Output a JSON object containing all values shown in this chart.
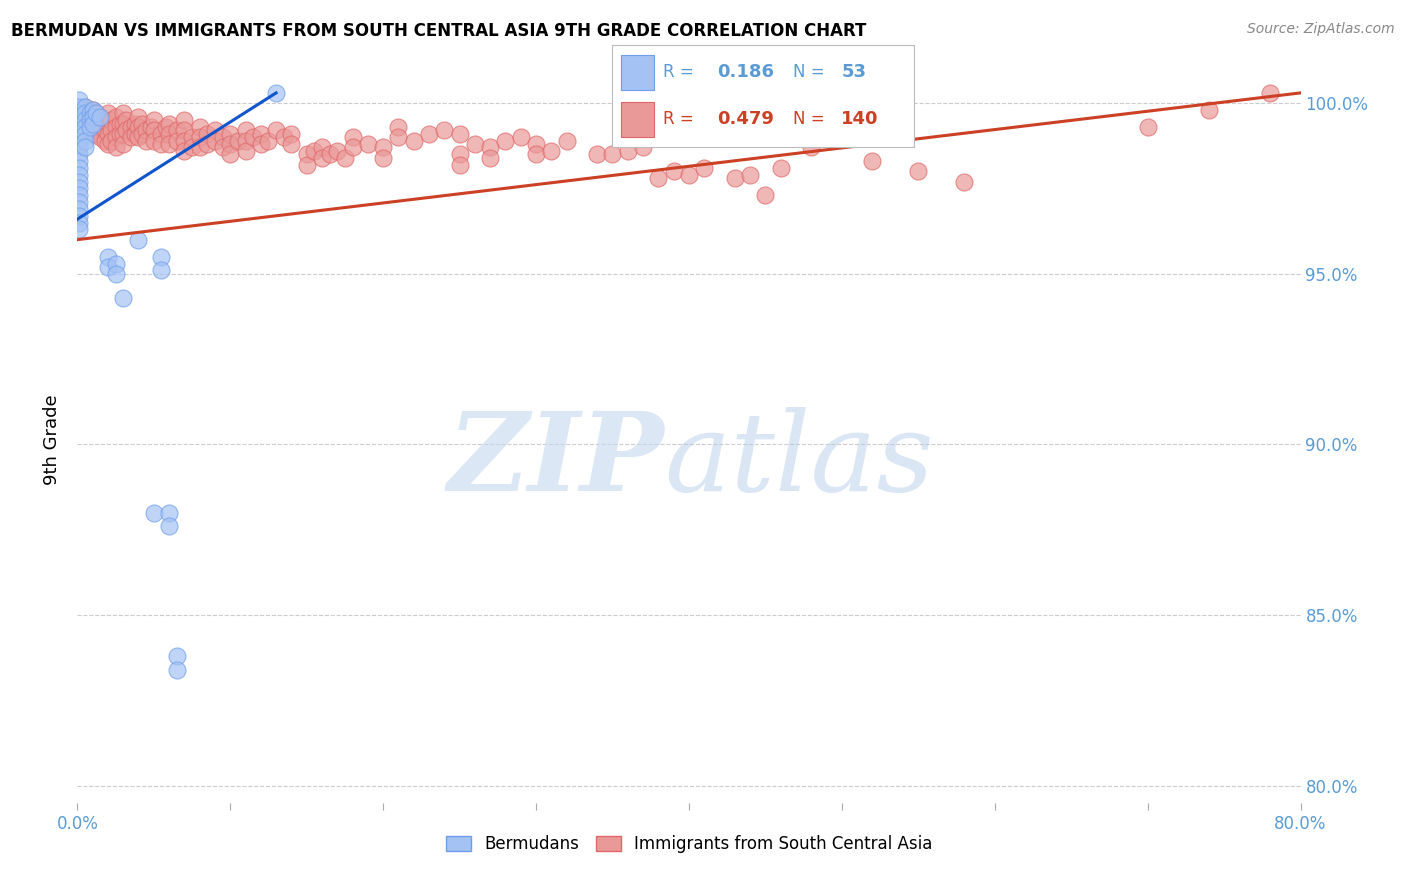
{
  "title": "BERMUDAN VS IMMIGRANTS FROM SOUTH CENTRAL ASIA 9TH GRADE CORRELATION CHART",
  "source": "Source: ZipAtlas.com",
  "ylabel": "9th Grade",
  "x_min": 0.0,
  "x_max": 0.8,
  "y_min": 0.795,
  "y_max": 1.008,
  "y_ticks": [
    0.8,
    0.85,
    0.9,
    0.95,
    1.0
  ],
  "y_tick_labels": [
    "80.0%",
    "85.0%",
    "90.0%",
    "95.0%",
    "100.0%"
  ],
  "x_ticks": [
    0.0,
    0.1,
    0.2,
    0.3,
    0.4,
    0.5,
    0.6,
    0.7,
    0.8
  ],
  "x_tick_labels": [
    "0.0%",
    "",
    "",
    "",
    "",
    "",
    "",
    "",
    "80.0%"
  ],
  "legend_blue_R": "0.186",
  "legend_blue_N": "53",
  "legend_pink_R": "0.479",
  "legend_pink_N": "140",
  "blue_color": "#a4c2f4",
  "pink_color": "#ea9999",
  "blue_edge_color": "#6d9eeb",
  "pink_edge_color": "#e06666",
  "blue_line_color": "#1155cc",
  "pink_line_color": "#cc4125",
  "blue_scatter": [
    [
      0.001,
      1.001
    ],
    [
      0.001,
      0.999
    ],
    [
      0.001,
      0.997
    ],
    [
      0.001,
      0.995
    ],
    [
      0.001,
      0.993
    ],
    [
      0.001,
      0.991
    ],
    [
      0.001,
      0.989
    ],
    [
      0.001,
      0.987
    ],
    [
      0.001,
      0.985
    ],
    [
      0.001,
      0.983
    ],
    [
      0.001,
      0.981
    ],
    [
      0.001,
      0.979
    ],
    [
      0.001,
      0.977
    ],
    [
      0.001,
      0.975
    ],
    [
      0.001,
      0.973
    ],
    [
      0.001,
      0.971
    ],
    [
      0.001,
      0.969
    ],
    [
      0.001,
      0.967
    ],
    [
      0.001,
      0.965
    ],
    [
      0.001,
      0.963
    ],
    [
      0.005,
      0.999
    ],
    [
      0.005,
      0.997
    ],
    [
      0.005,
      0.995
    ],
    [
      0.005,
      0.993
    ],
    [
      0.005,
      0.991
    ],
    [
      0.005,
      0.989
    ],
    [
      0.005,
      0.987
    ],
    [
      0.008,
      0.997
    ],
    [
      0.008,
      0.995
    ],
    [
      0.008,
      0.993
    ],
    [
      0.01,
      0.998
    ],
    [
      0.01,
      0.996
    ],
    [
      0.01,
      0.994
    ],
    [
      0.012,
      0.997
    ],
    [
      0.015,
      0.996
    ],
    [
      0.02,
      0.955
    ],
    [
      0.02,
      0.952
    ],
    [
      0.025,
      0.953
    ],
    [
      0.025,
      0.95
    ],
    [
      0.03,
      0.943
    ],
    [
      0.04,
      0.96
    ],
    [
      0.05,
      0.88
    ],
    [
      0.055,
      0.955
    ],
    [
      0.055,
      0.951
    ],
    [
      0.06,
      0.88
    ],
    [
      0.06,
      0.876
    ],
    [
      0.065,
      0.838
    ],
    [
      0.065,
      0.834
    ],
    [
      0.13,
      1.003
    ]
  ],
  "pink_scatter": [
    [
      0.005,
      0.999
    ],
    [
      0.005,
      0.996
    ],
    [
      0.005,
      0.993
    ],
    [
      0.008,
      0.997
    ],
    [
      0.008,
      0.994
    ],
    [
      0.008,
      0.991
    ],
    [
      0.01,
      0.998
    ],
    [
      0.01,
      0.995
    ],
    [
      0.01,
      0.992
    ],
    [
      0.012,
      0.997
    ],
    [
      0.012,
      0.994
    ],
    [
      0.012,
      0.991
    ],
    [
      0.015,
      0.996
    ],
    [
      0.015,
      0.993
    ],
    [
      0.015,
      0.99
    ],
    [
      0.018,
      0.995
    ],
    [
      0.018,
      0.992
    ],
    [
      0.018,
      0.989
    ],
    [
      0.02,
      0.997
    ],
    [
      0.02,
      0.994
    ],
    [
      0.02,
      0.991
    ],
    [
      0.02,
      0.988
    ],
    [
      0.022,
      0.995
    ],
    [
      0.022,
      0.992
    ],
    [
      0.022,
      0.989
    ],
    [
      0.025,
      0.996
    ],
    [
      0.025,
      0.993
    ],
    [
      0.025,
      0.99
    ],
    [
      0.025,
      0.987
    ],
    [
      0.028,
      0.994
    ],
    [
      0.028,
      0.991
    ],
    [
      0.03,
      0.997
    ],
    [
      0.03,
      0.994
    ],
    [
      0.03,
      0.991
    ],
    [
      0.03,
      0.988
    ],
    [
      0.032,
      0.995
    ],
    [
      0.032,
      0.992
    ],
    [
      0.035,
      0.993
    ],
    [
      0.035,
      0.99
    ],
    [
      0.038,
      0.994
    ],
    [
      0.038,
      0.991
    ],
    [
      0.04,
      0.996
    ],
    [
      0.04,
      0.993
    ],
    [
      0.04,
      0.99
    ],
    [
      0.042,
      0.994
    ],
    [
      0.042,
      0.991
    ],
    [
      0.045,
      0.992
    ],
    [
      0.045,
      0.989
    ],
    [
      0.048,
      0.993
    ],
    [
      0.05,
      0.995
    ],
    [
      0.05,
      0.992
    ],
    [
      0.05,
      0.989
    ],
    [
      0.055,
      0.991
    ],
    [
      0.055,
      0.988
    ],
    [
      0.058,
      0.993
    ],
    [
      0.06,
      0.994
    ],
    [
      0.06,
      0.991
    ],
    [
      0.06,
      0.988
    ],
    [
      0.065,
      0.992
    ],
    [
      0.065,
      0.989
    ],
    [
      0.07,
      0.995
    ],
    [
      0.07,
      0.992
    ],
    [
      0.07,
      0.989
    ],
    [
      0.07,
      0.986
    ],
    [
      0.075,
      0.99
    ],
    [
      0.075,
      0.987
    ],
    [
      0.08,
      0.993
    ],
    [
      0.08,
      0.99
    ],
    [
      0.08,
      0.987
    ],
    [
      0.085,
      0.991
    ],
    [
      0.085,
      0.988
    ],
    [
      0.09,
      0.992
    ],
    [
      0.09,
      0.989
    ],
    [
      0.095,
      0.99
    ],
    [
      0.095,
      0.987
    ],
    [
      0.1,
      0.991
    ],
    [
      0.1,
      0.988
    ],
    [
      0.1,
      0.985
    ],
    [
      0.105,
      0.989
    ],
    [
      0.11,
      0.992
    ],
    [
      0.11,
      0.989
    ],
    [
      0.11,
      0.986
    ],
    [
      0.115,
      0.99
    ],
    [
      0.12,
      0.991
    ],
    [
      0.12,
      0.988
    ],
    [
      0.125,
      0.989
    ],
    [
      0.13,
      0.992
    ],
    [
      0.135,
      0.99
    ],
    [
      0.14,
      0.991
    ],
    [
      0.14,
      0.988
    ],
    [
      0.15,
      0.985
    ],
    [
      0.15,
      0.982
    ],
    [
      0.155,
      0.986
    ],
    [
      0.16,
      0.987
    ],
    [
      0.16,
      0.984
    ],
    [
      0.165,
      0.985
    ],
    [
      0.17,
      0.986
    ],
    [
      0.175,
      0.984
    ],
    [
      0.18,
      0.99
    ],
    [
      0.18,
      0.987
    ],
    [
      0.19,
      0.988
    ],
    [
      0.2,
      0.987
    ],
    [
      0.2,
      0.984
    ],
    [
      0.21,
      0.993
    ],
    [
      0.21,
      0.99
    ],
    [
      0.22,
      0.989
    ],
    [
      0.23,
      0.991
    ],
    [
      0.24,
      0.992
    ],
    [
      0.25,
      0.991
    ],
    [
      0.25,
      0.985
    ],
    [
      0.25,
      0.982
    ],
    [
      0.26,
      0.988
    ],
    [
      0.27,
      0.987
    ],
    [
      0.27,
      0.984
    ],
    [
      0.28,
      0.989
    ],
    [
      0.29,
      0.99
    ],
    [
      0.3,
      0.988
    ],
    [
      0.3,
      0.985
    ],
    [
      0.31,
      0.986
    ],
    [
      0.32,
      0.989
    ],
    [
      0.34,
      0.985
    ],
    [
      0.35,
      0.985
    ],
    [
      0.36,
      0.986
    ],
    [
      0.37,
      0.987
    ],
    [
      0.38,
      0.978
    ],
    [
      0.39,
      0.98
    ],
    [
      0.4,
      0.979
    ],
    [
      0.41,
      0.981
    ],
    [
      0.42,
      0.99
    ],
    [
      0.43,
      0.978
    ],
    [
      0.44,
      0.979
    ],
    [
      0.45,
      0.973
    ],
    [
      0.46,
      0.981
    ],
    [
      0.48,
      0.987
    ],
    [
      0.52,
      0.983
    ],
    [
      0.55,
      0.98
    ],
    [
      0.58,
      0.977
    ],
    [
      0.7,
      0.993
    ],
    [
      0.74,
      0.998
    ],
    [
      0.78,
      1.003
    ]
  ],
  "blue_trendline_x": [
    0.0,
    0.13
  ],
  "blue_trendline_y": [
    0.966,
    1.003
  ],
  "pink_trendline_x": [
    0.0,
    0.8
  ],
  "pink_trendline_y": [
    0.96,
    1.003
  ]
}
